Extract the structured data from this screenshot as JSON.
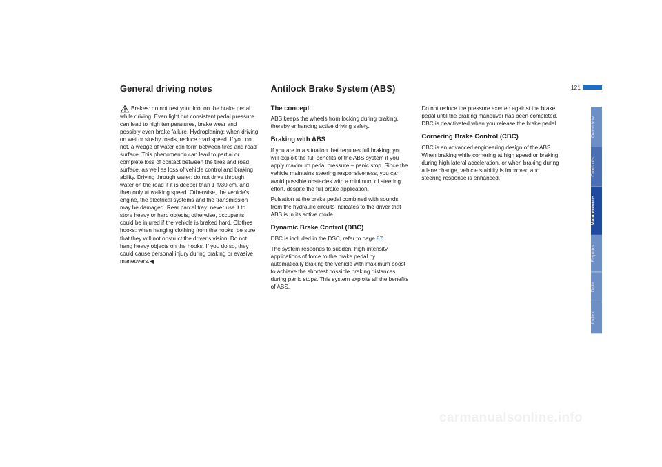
{
  "page_number": "121",
  "watermark": "carmanualsonline.info",
  "col1": {
    "heading": "General driving notes",
    "body": "Brakes: do not rest your foot on the brake pedal while driving. Even light but consistent pedal pressure can lead to high temperatures, brake wear and possibly even brake failure.\nHydroplaning: when driving on wet or slushy roads, reduce road speed. If you do not, a wedge of water can form between tires and road surface. This phenomenon can lead to partial or complete loss of contact between the tires and road surface, as well as loss of vehicle control and braking ability.\nDriving through water: do not drive through water on the road if it is deeper than 1 ft/30 cm, and then only at walking speed. Otherwise, the vehicle's engine, the electrical systems and the transmission may be damaged.\nRear parcel tray: never use it to store heavy or hard objects; otherwise, occupants could be injured if the vehicle is braked hard.\nClothes hooks: when hanging clothing from the hooks, be sure that they will not obstruct the driver's vision. Do not hang heavy objects on the hooks. If you do so, they could cause personal injury during braking or evasive maneuvers.◀"
  },
  "col2": {
    "heading": "Antilock Brake System (ABS)",
    "s1_title": "The concept",
    "s1_body": "ABS keeps the wheels from locking during braking, thereby enhancing active driving safety.",
    "s2_title": "Braking with ABS",
    "s2_body1": "If you are in a situation that requires full braking, you will exploit the full benefits of the ABS system if you apply maximum pedal pressure – panic stop. Since the vehicle maintains steering responsiveness, you can avoid possible obstacles with a minimum of steering effort, despite the full brake application.",
    "s2_body2": "Pulsation at the brake pedal combined with sounds from the hydraulic circuits indicates to the driver that ABS is in its active mode.",
    "s3_title": "Dynamic Brake Control (DBC)",
    "s3_body1a": "DBC is included in the DSC, refer to page ",
    "s3_link": "87",
    "s3_body1b": ".",
    "s3_body2": "The system responds to sudden, high-intensity applications of force to the brake pedal by automatically braking the vehicle with maximum boost to achieve the shortest possible braking distances during panic stops. This system exploits all the benefits of ABS."
  },
  "col3": {
    "p1": "Do not reduce the pressure exerted against the brake pedal until the braking maneuver has been completed. DBC is deactivated when you release the brake pedal.",
    "s1_title": "Cornering Brake Control (CBC)",
    "s1_body": "CBC is an advanced engineering design of the ABS. When braking while cornering at high speed or braking during high lateral acceleration, or when braking during a lane change, vehicle stability is improved and steering response is enhanced."
  },
  "tabs": {
    "items": [
      {
        "label": "Overview",
        "color": "#6d8fc7",
        "active": false
      },
      {
        "label": "Controls",
        "color": "#4b6fb5",
        "active": false
      },
      {
        "label": "Maintenance",
        "color": "#1e4aa0",
        "active": true
      },
      {
        "label": "Repairs",
        "color": "#6d8fc7",
        "active": false
      },
      {
        "label": "Data",
        "color": "#6d8fc7",
        "active": false
      },
      {
        "label": "Index",
        "color": "#6d8fc7",
        "active": false
      }
    ]
  }
}
